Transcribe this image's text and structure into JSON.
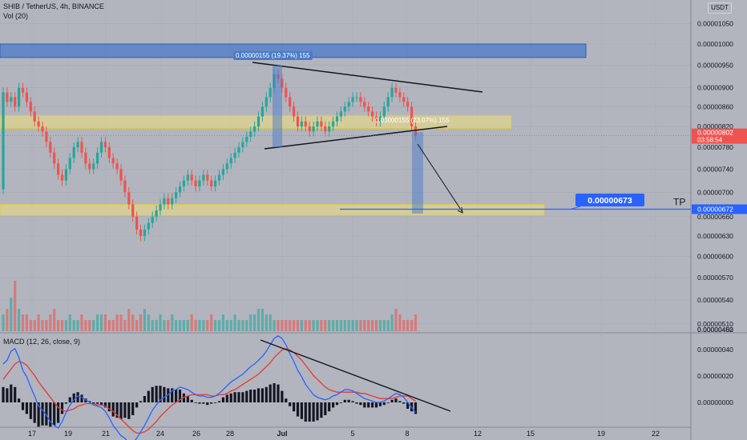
{
  "header": {
    "symbol_line": "SHIB / TetherUS, 4h, BINANCE",
    "volume_label": "Vol (20)",
    "macd_label": "MACD (12, 26, close, 9)",
    "currency": "USDT"
  },
  "colors": {
    "background": "#b2b5be",
    "up": "#26a69a",
    "down": "#ef5350",
    "supply_zone": "#4a7bc8",
    "demand_zone": "#f0e07a",
    "macd_line": "#2962ff",
    "signal_line": "#e53935",
    "histogram": "#131722",
    "tp_line": "#2962ff"
  },
  "chart_data": {
    "type": "candlestick",
    "price_axis": {
      "scale": "log",
      "ticks": [
        "0.00001050",
        "0.00001000",
        "0.00000950",
        "0.00000900",
        "0.00000860",
        "0.00000820",
        "0.00000780",
        "0.00000740",
        "0.00000700",
        "0.00000660",
        "0.00000630",
        "0.00000600",
        "0.00000570",
        "0.00000540",
        "0.00000510",
        "0.00000480",
        "0.00000452"
      ]
    },
    "x_axis": {
      "ticks": [
        "17",
        "19",
        "21",
        "24",
        "26",
        "28",
        "Jul",
        "5",
        "8",
        "12",
        "15",
        "19",
        "22"
      ]
    },
    "current_price": "0.00000802",
    "countdown": "03:58:54",
    "tp_price": "0.00000672",
    "tp_label": "TP",
    "target_callout": "0.00000673",
    "measure_1": "0.00000155 (19.37%) 155",
    "measure_2": "0.00000155 (23.07%) 155",
    "macd_axis": {
      "ticks": [
        "0.00000040",
        "0.00000020",
        "0.00000000"
      ]
    },
    "zones": [
      {
        "name": "supply",
        "top": 1e-05,
        "bottom": 9.68e-06
      },
      {
        "name": "mid-demand",
        "top": 8.42e-06,
        "bottom": 8.16e-06
      },
      {
        "name": "low-demand",
        "top": 6.8e-06,
        "bottom": 6.62e-06
      }
    ],
    "closes_start": 7.05e-06,
    "closes": [
      8.9e-06,
      8.7e-06,
      8.8e-06,
      8.6e-06,
      9e-06,
      8.9e-06,
      8.7e-06,
      8.5e-06,
      8.3e-06,
      8.2e-06,
      8.1e-06,
      7.9e-06,
      7.7e-06,
      7.5e-06,
      7.3e-06,
      7.2e-06,
      7.4e-06,
      7.6e-06,
      7.8e-06,
      7.9e-06,
      7.7e-06,
      7.5e-06,
      7.4e-06,
      7.5e-06,
      7.7e-06,
      7.9e-06,
      7.8e-06,
      7.6e-06,
      7.5e-06,
      7.4e-06,
      7.2e-06,
      7e-06,
      6.8e-06,
      6.6e-06,
      6.4e-06,
      6.3e-06,
      6.4e-06,
      6.5e-06,
      6.6e-06,
      6.7e-06,
      6.8e-06,
      6.9e-06,
      6.8e-06,
      6.9e-06,
      7e-06,
      7.1e-06,
      7.2e-06,
      7.3e-06,
      7.2e-06,
      7.1e-06,
      7.2e-06,
      7.3e-06,
      7.2e-06,
      7.1e-06,
      7.2e-06,
      7.3e-06,
      7.4e-06,
      7.5e-06,
      7.6e-06,
      7.7e-06,
      7.8e-06,
      7.9e-06,
      8e-06,
      8.1e-06,
      8.2e-06,
      8.4e-06,
      8.6e-06,
      8.8e-06,
      9e-06,
      9.3e-06,
      9.2e-06,
      9e-06,
      8.8e-06,
      8.6e-06,
      8.4e-06,
      8.2e-06,
      8.3e-06,
      8.2e-06,
      8.1e-06,
      8.2e-06,
      8.3e-06,
      8.2e-06,
      8.1e-06,
      8.2e-06,
      8.3e-06,
      8.4e-06,
      8.5e-06,
      8.6e-06,
      8.7e-06,
      8.8e-06,
      8.8e-06,
      8.7e-06,
      8.6e-06,
      8.5e-06,
      8.4e-06,
      8.3e-06,
      8.4e-06,
      8.6e-06,
      8.8e-06,
      9e-06,
      8.9e-06,
      8.8e-06,
      8.7e-06,
      8.6e-06,
      8.2e-06,
      8.02e-06
    ],
    "volumes": [
      3,
      4,
      6,
      9,
      4,
      3,
      3,
      2,
      2,
      3,
      2,
      2,
      3,
      4,
      2,
      2,
      2,
      3,
      2,
      2,
      3,
      2,
      2,
      2,
      3,
      3,
      3,
      2,
      2,
      3,
      3,
      2,
      4,
      3,
      2,
      3,
      4,
      3,
      2,
      2,
      3,
      2,
      2,
      3,
      2,
      2,
      2,
      2,
      3,
      2,
      2,
      2,
      2,
      3,
      2,
      2,
      3,
      2,
      2,
      3,
      2,
      2,
      2,
      3,
      3,
      4,
      4,
      3,
      3,
      2,
      2,
      2,
      2,
      2,
      2,
      2,
      2,
      2,
      2,
      2,
      2,
      2,
      2,
      2,
      2,
      2,
      2,
      2,
      2,
      2,
      2,
      2,
      2,
      2,
      2,
      2,
      2,
      2,
      2,
      3,
      4,
      3,
      2,
      2,
      2,
      3
    ],
    "macd": [
      0.3,
      0.33,
      0.4,
      0.42,
      0.35,
      0.25,
      0.2,
      0.12,
      0.05,
      -0.03,
      -0.06,
      -0.1,
      -0.15,
      -0.18,
      -0.2,
      -0.15,
      -0.08,
      -0.02,
      0.02,
      0.05,
      0.04,
      0.02,
      0.0,
      -0.02,
      -0.03,
      -0.04,
      -0.07,
      -0.12,
      -0.18,
      -0.22,
      -0.26,
      -0.28,
      -0.32,
      -0.32,
      -0.28,
      -0.23,
      -0.18,
      -0.12,
      -0.06,
      -0.02,
      0.02,
      0.04,
      0.06,
      0.09,
      0.1,
      0.12,
      0.11,
      0.1,
      0.08,
      0.06,
      0.05,
      0.05,
      0.04,
      0.04,
      0.05,
      0.07,
      0.1,
      0.13,
      0.16,
      0.18,
      0.2,
      0.22,
      0.25,
      0.28,
      0.3,
      0.33,
      0.36,
      0.4,
      0.45,
      0.5,
      0.52,
      0.5,
      0.45,
      0.38,
      0.32,
      0.25,
      0.2,
      0.14,
      0.1,
      0.06,
      0.04,
      0.03,
      0.02,
      0.03,
      0.05,
      0.06,
      0.08,
      0.1,
      0.1,
      0.09,
      0.07,
      0.05,
      0.03,
      0.02,
      0.01,
      0.0,
      0.0,
      0.01,
      0.03,
      0.05,
      0.07,
      0.06,
      0.04,
      0.0,
      -0.04,
      -0.08
    ],
    "signal": [
      0.18,
      0.22,
      0.26,
      0.3,
      0.32,
      0.31,
      0.29,
      0.25,
      0.21,
      0.16,
      0.12,
      0.08,
      0.04,
      0.0,
      -0.04,
      -0.06,
      -0.07,
      -0.06,
      -0.05,
      -0.03,
      -0.02,
      -0.01,
      -0.01,
      -0.01,
      -0.02,
      -0.02,
      -0.03,
      -0.05,
      -0.07,
      -0.1,
      -0.13,
      -0.16,
      -0.19,
      -0.22,
      -0.24,
      -0.24,
      -0.23,
      -0.21,
      -0.18,
      -0.15,
      -0.11,
      -0.08,
      -0.05,
      -0.02,
      0.0,
      0.02,
      0.04,
      0.05,
      0.06,
      0.06,
      0.06,
      0.06,
      0.06,
      0.05,
      0.05,
      0.06,
      0.06,
      0.07,
      0.09,
      0.1,
      0.12,
      0.14,
      0.16,
      0.18,
      0.2,
      0.22,
      0.25,
      0.28,
      0.31,
      0.35,
      0.38,
      0.41,
      0.42,
      0.41,
      0.39,
      0.36,
      0.33,
      0.29,
      0.25,
      0.21,
      0.18,
      0.15,
      0.12,
      0.1,
      0.09,
      0.08,
      0.08,
      0.08,
      0.08,
      0.08,
      0.08,
      0.07,
      0.07,
      0.06,
      0.05,
      0.04,
      0.03,
      0.03,
      0.03,
      0.03,
      0.04,
      0.05,
      0.05,
      0.05,
      0.03,
      0.01
    ]
  }
}
